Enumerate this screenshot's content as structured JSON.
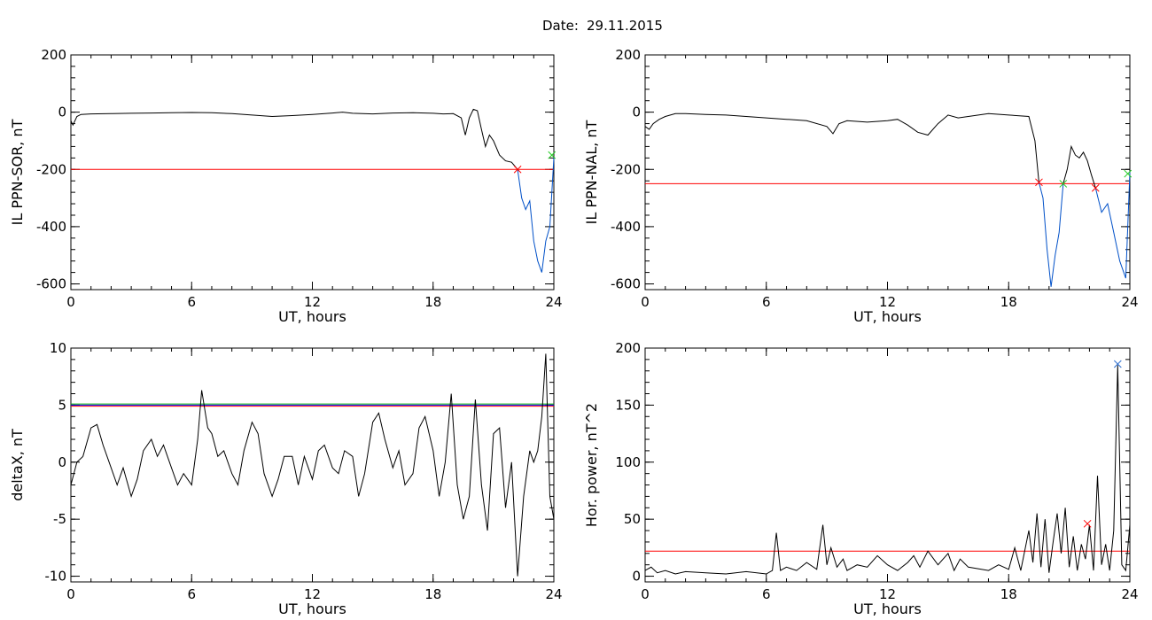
{
  "header": {
    "date_label": "Date:",
    "date_value": "29.11.2015"
  },
  "chart_data": [
    {
      "type": "line",
      "ylabel": "IL PPN-SOR, nT",
      "xlabel": "UT, hours",
      "xlim": [
        0,
        24
      ],
      "ylim": [
        -620,
        200
      ],
      "xticks": [
        0,
        6,
        12,
        18,
        24
      ],
      "yticks": [
        200,
        0,
        -200,
        -400,
        -600
      ],
      "grid": false,
      "threshold_lines": [
        {
          "value": -200,
          "color": "#ff0000"
        }
      ],
      "series": [
        {
          "color": "#000000",
          "x": [
            0,
            0.1,
            0.3,
            0.5,
            1,
            2,
            3,
            4,
            5,
            6,
            7,
            8,
            9,
            10,
            11,
            12,
            13,
            13.5,
            14,
            15,
            16,
            17,
            18,
            18.5,
            19,
            19.4,
            19.6,
            19.8,
            20,
            20.2,
            20.4,
            20.6,
            20.8,
            21,
            21.3,
            21.6,
            21.9,
            22.2
          ],
          "y": [
            -30,
            -45,
            -15,
            -8,
            -6,
            -5,
            -4,
            -3,
            -2,
            -1,
            -2,
            -5,
            -10,
            -15,
            -12,
            -8,
            -3,
            0,
            -4,
            -6,
            -3,
            -2,
            -4,
            -6,
            -5,
            -20,
            -80,
            -20,
            10,
            5,
            -60,
            -120,
            -80,
            -100,
            -150,
            -170,
            -175,
            -200
          ]
        },
        {
          "color": "#0050c8",
          "x": [
            22.2,
            22.4,
            22.6,
            22.8,
            23,
            23.2,
            23.4,
            23.6,
            23.8,
            24
          ],
          "y": [
            -200,
            -300,
            -340,
            -310,
            -450,
            -520,
            -560,
            -450,
            -400,
            -160
          ]
        }
      ],
      "markers": [
        {
          "x": 22.2,
          "y": -200,
          "color": "#ff0000",
          "symbol": "x"
        },
        {
          "x": 23.9,
          "y": -150,
          "color": "#22cc22",
          "symbol": "x"
        }
      ]
    },
    {
      "type": "line",
      "ylabel": "IL PPN-NAL, nT",
      "xlabel": "UT, hours",
      "xlim": [
        0,
        24
      ],
      "ylim": [
        -620,
        200
      ],
      "xticks": [
        0,
        6,
        12,
        18,
        24
      ],
      "yticks": [
        200,
        0,
        -200,
        -400,
        -600
      ],
      "grid": false,
      "threshold_lines": [
        {
          "value": -250,
          "color": "#ff0000"
        }
      ],
      "series": [
        {
          "color": "#000000",
          "x": [
            0,
            0.2,
            0.4,
            0.7,
            1,
            1.5,
            2,
            3,
            4,
            5,
            6,
            7,
            8,
            9,
            9.3,
            9.6,
            10,
            11,
            12,
            12.5,
            13,
            13.5,
            14,
            14.5,
            15,
            15.5,
            16,
            17,
            18,
            19,
            19.3,
            19.5
          ],
          "y": [
            -50,
            -60,
            -40,
            -25,
            -15,
            -5,
            -5,
            -8,
            -10,
            -15,
            -20,
            -25,
            -30,
            -50,
            -75,
            -40,
            -30,
            -35,
            -30,
            -25,
            -45,
            -70,
            -80,
            -40,
            -10,
            -20,
            -15,
            -5,
            -10,
            -15,
            -100,
            -245
          ]
        },
        {
          "color": "#0050c8",
          "x": [
            19.5,
            19.7,
            19.9,
            20.1,
            20.3,
            20.5,
            20.7
          ],
          "y": [
            -245,
            -300,
            -480,
            -610,
            -500,
            -420,
            -250
          ]
        },
        {
          "color": "#000000",
          "x": [
            20.7,
            20.9,
            21.1,
            21.3,
            21.5,
            21.7,
            21.9,
            22.1,
            22.3
          ],
          "y": [
            -250,
            -200,
            -120,
            -150,
            -160,
            -140,
            -170,
            -220,
            -265
          ]
        },
        {
          "color": "#0050c8",
          "x": [
            22.3,
            22.6,
            22.9,
            23.2,
            23.5,
            23.8,
            24
          ],
          "y": [
            -265,
            -350,
            -320,
            -420,
            -520,
            -580,
            -210
          ]
        }
      ],
      "markers": [
        {
          "x": 19.5,
          "y": -245,
          "color": "#ff0000",
          "symbol": "x"
        },
        {
          "x": 20.7,
          "y": -250,
          "color": "#22cc22",
          "symbol": "x"
        },
        {
          "x": 22.3,
          "y": -265,
          "color": "#ff0000",
          "symbol": "x"
        },
        {
          "x": 23.9,
          "y": -215,
          "color": "#22cc22",
          "symbol": "x"
        }
      ]
    },
    {
      "type": "line",
      "ylabel": "deltaX, nT",
      "xlabel": "UT, hours",
      "xlim": [
        0,
        24
      ],
      "ylim": [
        -10.5,
        10
      ],
      "xticks": [
        0,
        6,
        12,
        18,
        24
      ],
      "yticks": [
        10,
        5,
        0,
        -5,
        -10
      ],
      "grid": false,
      "threshold_lines": [
        {
          "value": 5.1,
          "color": "#00b000"
        },
        {
          "value": 4.9,
          "color": "#ff0000"
        },
        {
          "value": 5.0,
          "color": "#0000ff"
        }
      ],
      "series": [
        {
          "color": "#000000",
          "x": [
            0,
            0.3,
            0.6,
            1,
            1.3,
            1.6,
            2,
            2.3,
            2.6,
            3,
            3.3,
            3.6,
            4,
            4.3,
            4.6,
            5,
            5.3,
            5.6,
            6,
            6.3,
            6.5,
            6.8,
            7,
            7.3,
            7.6,
            8,
            8.3,
            8.6,
            9,
            9.3,
            9.6,
            10,
            10.3,
            10.6,
            11,
            11.3,
            11.6,
            12,
            12.3,
            12.6,
            13,
            13.3,
            13.6,
            14,
            14.3,
            14.6,
            15,
            15.3,
            15.6,
            16,
            16.3,
            16.6,
            17,
            17.3,
            17.6,
            18,
            18.3,
            18.6,
            18.9,
            19.2,
            19.5,
            19.8,
            20.1,
            20.4,
            20.7,
            21,
            21.3,
            21.6,
            21.9,
            22.2,
            22.5,
            22.8,
            23,
            23.2,
            23.4,
            23.6,
            23.8,
            24
          ],
          "y": [
            -2,
            0,
            0.5,
            3,
            3.3,
            1.5,
            -0.5,
            -2,
            -0.5,
            -3,
            -1.5,
            1,
            2,
            0.5,
            1.5,
            -0.5,
            -2,
            -1,
            -2,
            2,
            6.3,
            3,
            2.5,
            0.5,
            1,
            -1,
            -2,
            1,
            3.5,
            2.5,
            -1,
            -3,
            -1.5,
            0.5,
            0.5,
            -2,
            0.5,
            -1.5,
            1,
            1.5,
            -0.5,
            -1,
            1,
            0.5,
            -3,
            -1,
            3.5,
            4.3,
            2,
            -0.5,
            1,
            -2,
            -1,
            3,
            4,
            1,
            -3,
            0,
            6,
            -2,
            -5,
            -3,
            5.5,
            -2,
            -6,
            2.5,
            3,
            -4,
            0,
            -10,
            -3,
            1,
            0,
            1,
            4,
            9.5,
            -3,
            -5
          ]
        }
      ],
      "markers": []
    },
    {
      "type": "line",
      "ylabel": "Hor. power, nT^2",
      "xlabel": "UT, hours",
      "xlim": [
        0,
        24
      ],
      "ylim": [
        -5,
        200
      ],
      "xticks": [
        0,
        6,
        12,
        18,
        24
      ],
      "yticks": [
        200,
        150,
        100,
        50,
        0
      ],
      "grid": false,
      "threshold_lines": [
        {
          "value": 22,
          "color": "#ff0000"
        }
      ],
      "series": [
        {
          "color": "#000000",
          "x": [
            0,
            0.3,
            0.6,
            1,
            1.5,
            2,
            3,
            4,
            5,
            6,
            6.3,
            6.5,
            6.7,
            7,
            7.5,
            8,
            8.5,
            8.8,
            9,
            9.2,
            9.5,
            9.8,
            10,
            10.5,
            11,
            11.5,
            12,
            12.5,
            13,
            13.3,
            13.6,
            14,
            14.5,
            15,
            15.3,
            15.6,
            16,
            17,
            17.5,
            18,
            18.3,
            18.6,
            19,
            19.2,
            19.4,
            19.6,
            19.8,
            20,
            20.2,
            20.4,
            20.6,
            20.8,
            21,
            21.2,
            21.4,
            21.6,
            21.8,
            22,
            22.2,
            22.4,
            22.6,
            22.8,
            23,
            23.2,
            23.4,
            23.6,
            23.8,
            24
          ],
          "y": [
            5,
            8,
            3,
            5,
            2,
            4,
            3,
            2,
            4,
            2,
            5,
            38,
            5,
            8,
            5,
            12,
            6,
            45,
            10,
            25,
            8,
            15,
            5,
            10,
            8,
            18,
            10,
            5,
            12,
            18,
            8,
            22,
            10,
            20,
            5,
            15,
            8,
            5,
            10,
            6,
            25,
            5,
            40,
            12,
            55,
            8,
            50,
            3,
            30,
            55,
            20,
            60,
            8,
            35,
            5,
            28,
            15,
            45,
            5,
            88,
            10,
            28,
            5,
            40,
            185,
            10,
            5,
            45
          ]
        }
      ],
      "markers": [
        {
          "x": 21.9,
          "y": 46,
          "color": "#ff0000",
          "symbol": "x"
        },
        {
          "x": 23.4,
          "y": 186,
          "color": "#3070d0",
          "symbol": "x"
        }
      ]
    }
  ]
}
